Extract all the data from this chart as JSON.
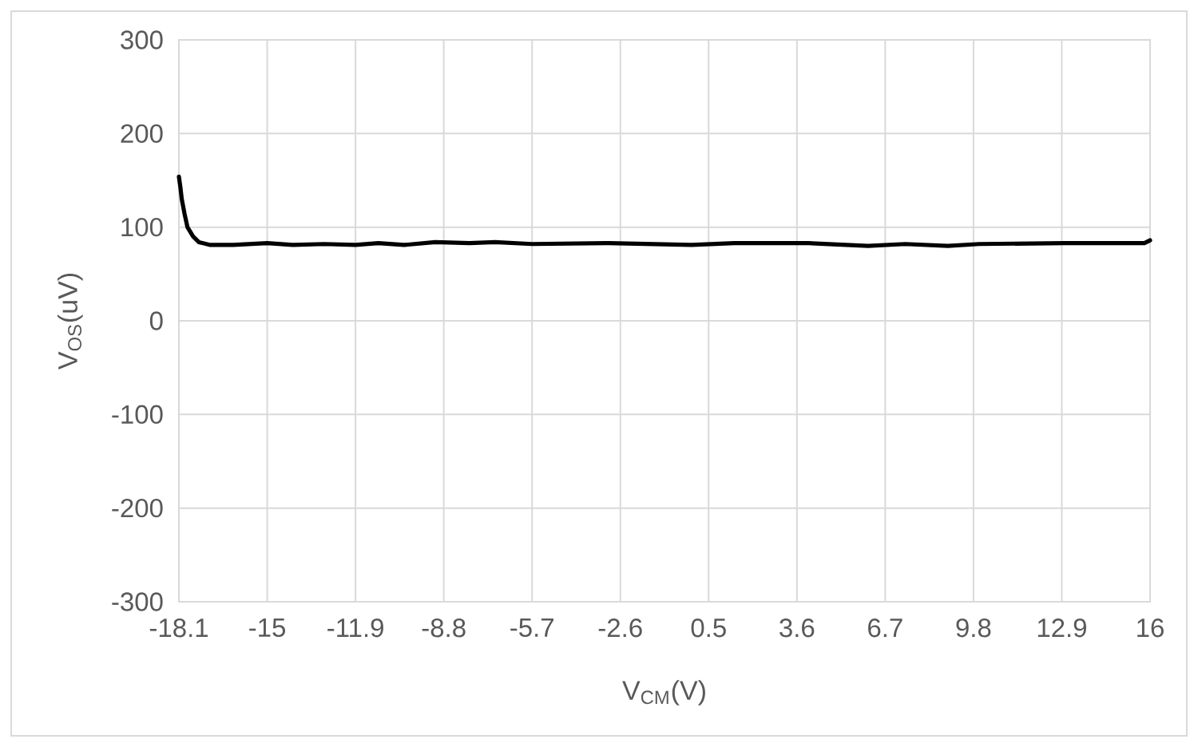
{
  "chart_data": {
    "type": "line",
    "xlabel": "V$_{CM}$(V)",
    "ylabel": "V$_{OS}$(uV)",
    "x": [
      -18.1,
      -18.05,
      -18.0,
      -17.9,
      -17.8,
      -17.6,
      -17.4,
      -17.0,
      -16.2,
      -15.0,
      -14.1,
      -13.0,
      -11.9,
      -11.1,
      -10.2,
      -9.1,
      -7.9,
      -7.0,
      -5.7,
      -3.1,
      -0.1,
      1.4,
      4.0,
      6.1,
      7.4,
      8.9,
      10.0,
      13.0,
      15.8,
      16.0
    ],
    "series": [
      {
        "color": "#000000",
        "values": [
          154,
          143,
          130,
          114,
          100,
          90,
          84,
          81,
          81,
          83,
          81,
          82,
          81,
          83,
          81,
          84,
          83,
          84,
          82,
          83,
          81,
          83,
          83,
          80,
          82,
          80,
          82,
          83,
          83,
          86
        ]
      }
    ],
    "xlim": [
      -18.1,
      16
    ],
    "ylim": [
      -300,
      300
    ],
    "xticks": [
      -18.1,
      -15,
      -11.9,
      -8.8,
      -5.7,
      -2.6,
      0.5,
      3.6,
      6.7,
      9.8,
      12.9,
      16
    ],
    "yticks": [
      -300,
      -200,
      -100,
      0,
      100,
      200,
      300
    ],
    "grid": true,
    "marker": "none",
    "line_style": "solid"
  }
}
